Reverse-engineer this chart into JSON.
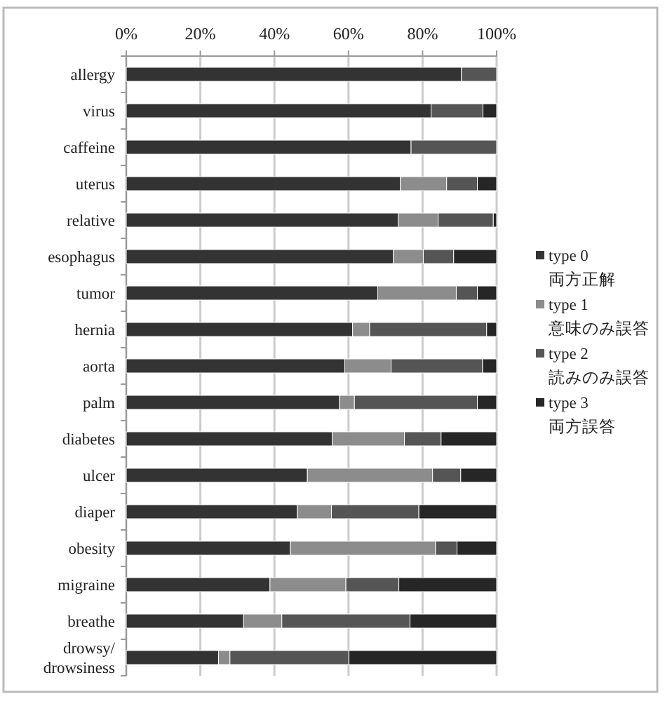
{
  "chart_data": {
    "type": "bar",
    "orientation": "horizontal",
    "stacked": true,
    "grid": "x",
    "legend": "right",
    "categories": [
      "allergy",
      "virus",
      "caffeine",
      "uterus",
      "relative",
      "esophagus",
      "tumor",
      "hernia",
      "aorta",
      "palm",
      "diabetes",
      "ulcer",
      "diaper",
      "obesity",
      "migraine",
      "breathe",
      "drowsy/\ndrowsiness"
    ],
    "xlim": [
      0,
      100
    ],
    "xticks": [
      {
        "value": 0,
        "label": "0%"
      },
      {
        "value": 20,
        "label": "20%"
      },
      {
        "value": 40,
        "label": "40%"
      },
      {
        "value": 60,
        "label": "60%"
      },
      {
        "value": 80,
        "label": "80%"
      },
      {
        "value": 100,
        "label": "100%"
      }
    ],
    "series": [
      {
        "name": "type 0\n両方正解",
        "color": "#333333",
        "values": [
          90.5,
          82.3,
          76.9,
          74,
          73.4,
          72.1,
          67.9,
          61.1,
          59,
          57.6,
          55.6,
          48.9,
          46.2,
          44.3,
          38.8,
          31.7,
          24.9
        ]
      },
      {
        "name": "type 1\n意味のみ誤答",
        "color": "#8c8c8c",
        "values": [
          0,
          0,
          0,
          12.5,
          10.8,
          8.1,
          21.2,
          4.6,
          12.5,
          4,
          19.5,
          33.8,
          9.2,
          39.2,
          20.5,
          10.3,
          3.1
        ]
      },
      {
        "name": "type 2\n読みのみ誤答",
        "color": "#555555",
        "values": [
          9.5,
          14,
          23.1,
          8.3,
          14.9,
          8.2,
          5.7,
          31.6,
          24.7,
          33.2,
          9.9,
          7.6,
          23.6,
          5.8,
          14.3,
          34.6,
          32.1
        ]
      },
      {
        "name": "type 3\n両方誤答",
        "color": "#262626",
        "values": [
          0,
          3.7,
          0,
          5.2,
          0.9,
          11.6,
          5.2,
          2.7,
          3.8,
          5.2,
          15,
          9.7,
          21,
          10.7,
          26.4,
          23.4,
          39.9
        ]
      }
    ]
  }
}
